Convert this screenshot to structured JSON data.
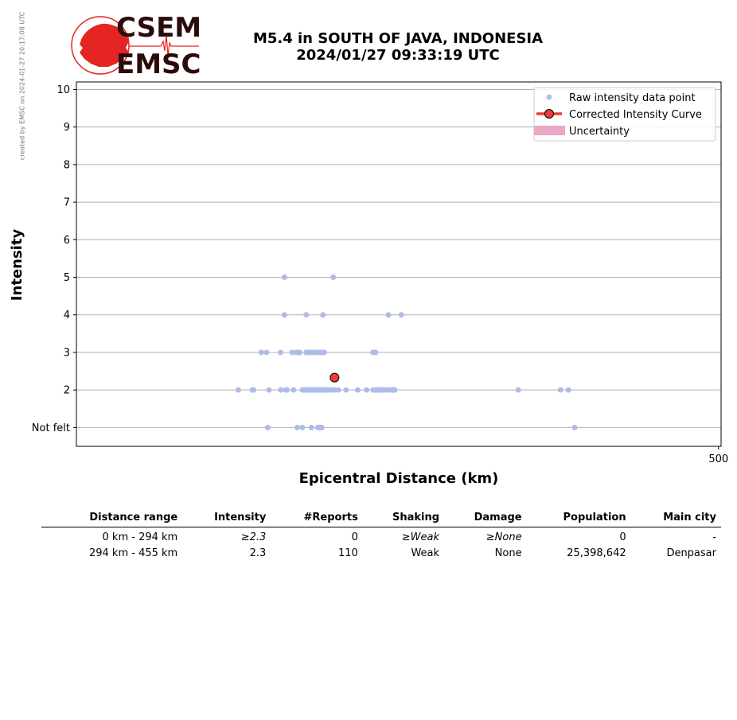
{
  "credit": "created by EMSC on 2024-01-27 20:17:08 UTC",
  "logo": {
    "top_text": "CSEM",
    "bottom_text": "EMSC",
    "red": "#e52521",
    "dark": "#2a0c0c"
  },
  "title": {
    "line1": "M5.4 in SOUTH OF JAVA, INDONESIA",
    "line2": "2024/01/27 09:33:19 UTC"
  },
  "chart_data": {
    "type": "scatter",
    "xlabel": "Epicentral Distance (km)",
    "ylabel": "Intensity",
    "xlim": [
      0,
      502
    ],
    "ylim": [
      0.5,
      10.2
    ],
    "x_ticks": [
      {
        "value": 500,
        "label": "500"
      }
    ],
    "y_ticks": [
      {
        "value": 1,
        "label": "Not felt"
      },
      {
        "value": 2,
        "label": "2"
      },
      {
        "value": 3,
        "label": "3"
      },
      {
        "value": 4,
        "label": "4"
      },
      {
        "value": 5,
        "label": "5"
      },
      {
        "value": 6,
        "label": "6"
      },
      {
        "value": 7,
        "label": "7"
      },
      {
        "value": 8,
        "label": "8"
      },
      {
        "value": 9,
        "label": "9"
      },
      {
        "value": 10,
        "label": "10"
      }
    ],
    "grid": "horizontal",
    "legend_position": "top-right",
    "legend": [
      {
        "label": "Raw intensity data point",
        "color": "#aebde8"
      },
      {
        "label": "Corrected Intensity Curve",
        "color": "#f03a3a"
      },
      {
        "label": "Uncertainty",
        "color": "#e8a8c6"
      }
    ],
    "series": [
      {
        "name": "Raw intensity data point",
        "color": "#aebde8",
        "points": [
          [
            162,
            5
          ],
          [
            200,
            5
          ],
          [
            162,
            4
          ],
          [
            179,
            4
          ],
          [
            192,
            4
          ],
          [
            243,
            4
          ],
          [
            253,
            4
          ],
          [
            144,
            3
          ],
          [
            148,
            3
          ],
          [
            159,
            3
          ],
          [
            168,
            3
          ],
          [
            171,
            3
          ],
          [
            173,
            3
          ],
          [
            174,
            3
          ],
          [
            179,
            3
          ],
          [
            180,
            3
          ],
          [
            181,
            3
          ],
          [
            183,
            3
          ],
          [
            185,
            3
          ],
          [
            186,
            3
          ],
          [
            187,
            3
          ],
          [
            189,
            3
          ],
          [
            190,
            3
          ],
          [
            191,
            3
          ],
          [
            192,
            3
          ],
          [
            193,
            3
          ],
          [
            231,
            3
          ],
          [
            233,
            3
          ],
          [
            126,
            2
          ],
          [
            137,
            2
          ],
          [
            138,
            2
          ],
          [
            150,
            2
          ],
          [
            159,
            2
          ],
          [
            163,
            2
          ],
          [
            164,
            2
          ],
          [
            169,
            2
          ],
          [
            176,
            2
          ],
          [
            177,
            2
          ],
          [
            178,
            2
          ],
          [
            179,
            2
          ],
          [
            180,
            2
          ],
          [
            181,
            2
          ],
          [
            182,
            2
          ],
          [
            183,
            2
          ],
          [
            184,
            2
          ],
          [
            185,
            2
          ],
          [
            186,
            2
          ],
          [
            187,
            2
          ],
          [
            188,
            2
          ],
          [
            189,
            2
          ],
          [
            190,
            2
          ],
          [
            191,
            2
          ],
          [
            192,
            2
          ],
          [
            193,
            2
          ],
          [
            194,
            2
          ],
          [
            195,
            2
          ],
          [
            196,
            2
          ],
          [
            198,
            2
          ],
          [
            201,
            2
          ],
          [
            204,
            2
          ],
          [
            210,
            2
          ],
          [
            219,
            2
          ],
          [
            226,
            2
          ],
          [
            231,
            2
          ],
          [
            233,
            2
          ],
          [
            234,
            2
          ],
          [
            235,
            2
          ],
          [
            236,
            2
          ],
          [
            237,
            2
          ],
          [
            238,
            2
          ],
          [
            239,
            2
          ],
          [
            240,
            2
          ],
          [
            243,
            2
          ],
          [
            245,
            2
          ],
          [
            246,
            2
          ],
          [
            247,
            2
          ],
          [
            248,
            2
          ],
          [
            344,
            2
          ],
          [
            377,
            2
          ],
          [
            383,
            2
          ],
          [
            149,
            1
          ],
          [
            172,
            1
          ],
          [
            176,
            1
          ],
          [
            183,
            1
          ],
          [
            188,
            1
          ],
          [
            189,
            1
          ],
          [
            190,
            1
          ],
          [
            191,
            1
          ],
          [
            388,
            1
          ]
        ]
      },
      {
        "name": "Corrected Intensity Curve",
        "color": "#f03a3a",
        "points": [
          [
            201,
            2.33
          ]
        ]
      }
    ]
  },
  "table": {
    "headers": [
      "Distance range",
      "Intensity",
      "#Reports",
      "Shaking",
      "Damage",
      "Population",
      "Main city"
    ],
    "rows": [
      {
        "distance": "0 km -  294 km",
        "intensity": "≥2.3",
        "reports": "0",
        "shaking": "≥Weak",
        "damage": "≥None",
        "population": "0",
        "city": "-"
      },
      {
        "distance": "294 km -  455 km",
        "intensity": "2.3",
        "reports": "110",
        "shaking": "Weak",
        "damage": "None",
        "population": "25,398,642",
        "city": "Denpasar"
      }
    ]
  }
}
